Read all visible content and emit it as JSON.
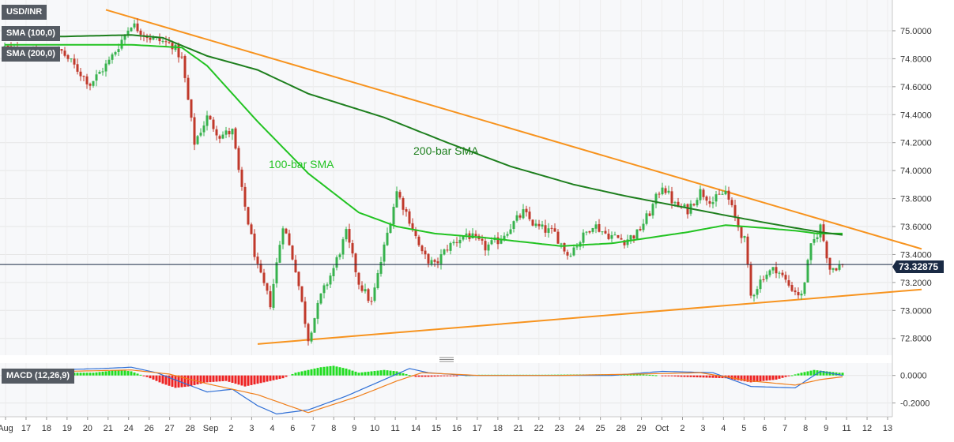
{
  "header": {
    "symbol": "USD/INR",
    "current_price": "73.32875"
  },
  "legend": {
    "sma100": "SMA (100,0)",
    "sma200": "SMA (200,0)",
    "macd": "MACD (12,26,9)"
  },
  "annotations": {
    "sma100_label": "100-bar SMA",
    "sma200_label": "200-bar SMA"
  },
  "colors": {
    "up": "#37b24d",
    "down": "#c0392b",
    "sma100": "#22c322",
    "sma200": "#1e7f1e",
    "trendline": "#f7931e",
    "macd_line": "#2f6fd6",
    "signal_line": "#f07f1b",
    "hist_pos": "#22dd22",
    "hist_neg": "#ee2222",
    "grid": "#e6e6e6",
    "price_tag": "#1a2a44"
  },
  "chart_data": [
    {
      "type": "candlestick",
      "title": "USD/INR",
      "ylim": [
        72.68,
        75.22
      ],
      "yticks": [
        "75.0000",
        "74.8000",
        "74.6000",
        "74.4000",
        "74.2000",
        "74.0000",
        "73.8000",
        "73.6000",
        "73.4000",
        "73.2000",
        "73.0000",
        "72.8000"
      ],
      "x_ticks": [
        "Aug",
        "17",
        "18",
        "19",
        "20",
        "21",
        "24",
        "26",
        "27",
        "28",
        "Sep",
        "2",
        "3",
        "4",
        "6",
        "7",
        "8",
        "9",
        "10",
        "11",
        "14",
        "15",
        "16",
        "17",
        "18",
        "21",
        "22",
        "23",
        "24",
        "25",
        "28",
        "29",
        "Oct",
        "2",
        "3",
        "4",
        "5",
        "6",
        "7",
        "8",
        "9",
        "11",
        "12",
        "13"
      ],
      "last_price": 73.32875,
      "anchors": [
        [
          0,
          74.88
        ],
        [
          10,
          74.82
        ],
        [
          18,
          74.85
        ],
        [
          27,
          74.62
        ],
        [
          33,
          74.78
        ],
        [
          40,
          75.05
        ],
        [
          46,
          74.95
        ],
        [
          53,
          74.9
        ],
        [
          56,
          74.8
        ],
        [
          60,
          74.2
        ],
        [
          64,
          74.38
        ],
        [
          68,
          74.25
        ],
        [
          72,
          74.28
        ],
        [
          75,
          73.85
        ],
        [
          80,
          73.3
        ],
        [
          84,
          73.05
        ],
        [
          88,
          73.62
        ],
        [
          92,
          73.3
        ],
        [
          96,
          72.8
        ],
        [
          100,
          73.1
        ],
        [
          104,
          73.3
        ],
        [
          108,
          73.55
        ],
        [
          112,
          73.2
        ],
        [
          116,
          73.05
        ],
        [
          120,
          73.45
        ],
        [
          124,
          73.85
        ],
        [
          128,
          73.65
        ],
        [
          132,
          73.4
        ],
        [
          136,
          73.32
        ],
        [
          140,
          73.45
        ],
        [
          146,
          73.55
        ],
        [
          152,
          73.45
        ],
        [
          156,
          73.5
        ],
        [
          160,
          73.6
        ],
        [
          164,
          73.7
        ],
        [
          168,
          73.6
        ],
        [
          174,
          73.55
        ],
        [
          178,
          73.4
        ],
        [
          182,
          73.5
        ],
        [
          186,
          73.62
        ],
        [
          190,
          73.55
        ],
        [
          196,
          73.5
        ],
        [
          200,
          73.55
        ],
        [
          204,
          73.7
        ],
        [
          208,
          73.9
        ],
        [
          212,
          73.75
        ],
        [
          216,
          73.72
        ],
        [
          220,
          73.85
        ],
        [
          224,
          73.78
        ],
        [
          228,
          73.85
        ],
        [
          232,
          73.6
        ],
        [
          234,
          73.5
        ],
        [
          236,
          73.1
        ],
        [
          240,
          73.25
        ],
        [
          244,
          73.3
        ],
        [
          248,
          73.18
        ],
        [
          252,
          73.1
        ],
        [
          255,
          73.45
        ],
        [
          258,
          73.6
        ],
        [
          261,
          73.3
        ],
        [
          265,
          73.33
        ]
      ],
      "sma100": [
        [
          0,
          74.9
        ],
        [
          40,
          74.9
        ],
        [
          56,
          74.88
        ],
        [
          64,
          74.75
        ],
        [
          80,
          74.35
        ],
        [
          96,
          73.98
        ],
        [
          112,
          73.7
        ],
        [
          124,
          73.6
        ],
        [
          136,
          73.55
        ],
        [
          152,
          73.52
        ],
        [
          164,
          73.49
        ],
        [
          176,
          73.46
        ],
        [
          192,
          73.48
        ],
        [
          204,
          73.52
        ],
        [
          216,
          73.56
        ],
        [
          228,
          73.61
        ],
        [
          240,
          73.59
        ],
        [
          250,
          73.57
        ],
        [
          257,
          73.55
        ],
        [
          262,
          73.55
        ],
        [
          265,
          73.55
        ]
      ],
      "sma200": [
        [
          0,
          74.95
        ],
        [
          40,
          74.97
        ],
        [
          50,
          74.95
        ],
        [
          64,
          74.82
        ],
        [
          80,
          74.72
        ],
        [
          96,
          74.55
        ],
        [
          120,
          74.38
        ],
        [
          140,
          74.2
        ],
        [
          160,
          74.03
        ],
        [
          180,
          73.9
        ],
        [
          196,
          73.82
        ],
        [
          212,
          73.75
        ],
        [
          228,
          73.68
        ],
        [
          240,
          73.63
        ],
        [
          250,
          73.59
        ],
        [
          258,
          73.56
        ],
        [
          265,
          73.54
        ]
      ],
      "trendlines": [
        {
          "name": "resistance",
          "points": [
            [
              32,
              75.15
            ],
            [
              290,
              73.44
            ]
          ]
        },
        {
          "name": "support",
          "points": [
            [
              80,
              72.76
            ],
            [
              290,
              73.15
            ]
          ]
        }
      ]
    },
    {
      "type": "macd",
      "title": "MACD (12,26,9)",
      "ylim": [
        -0.3,
        0.09
      ],
      "yticks": [
        "0.0000",
        "-0.2000"
      ],
      "macd_line": [
        [
          0,
          0.03
        ],
        [
          30,
          0.05
        ],
        [
          40,
          0.06
        ],
        [
          48,
          0.02
        ],
        [
          56,
          -0.05
        ],
        [
          64,
          -0.12
        ],
        [
          72,
          -0.1
        ],
        [
          80,
          -0.22
        ],
        [
          86,
          -0.28
        ],
        [
          96,
          -0.25
        ],
        [
          108,
          -0.15
        ],
        [
          118,
          -0.05
        ],
        [
          128,
          0.05
        ],
        [
          134,
          0.02
        ],
        [
          146,
          0.0
        ],
        [
          160,
          0.0
        ],
        [
          176,
          0.0
        ],
        [
          192,
          0.0
        ],
        [
          208,
          0.03
        ],
        [
          224,
          0.02
        ],
        [
          236,
          -0.08
        ],
        [
          250,
          -0.09
        ],
        [
          258,
          0.03
        ],
        [
          265,
          0.0
        ]
      ],
      "signal_line": [
        [
          0,
          0.02
        ],
        [
          40,
          0.04
        ],
        [
          52,
          0.01
        ],
        [
          64,
          -0.06
        ],
        [
          80,
          -0.14
        ],
        [
          96,
          -0.27
        ],
        [
          112,
          -0.15
        ],
        [
          124,
          -0.04
        ],
        [
          132,
          0.02
        ],
        [
          150,
          0.0
        ],
        [
          176,
          0.0
        ],
        [
          200,
          0.01
        ],
        [
          220,
          0.02
        ],
        [
          236,
          -0.04
        ],
        [
          250,
          -0.07
        ],
        [
          258,
          -0.03
        ],
        [
          265,
          -0.01
        ]
      ],
      "histogram": [
        [
          28,
          0.02
        ],
        [
          32,
          0.03
        ],
        [
          36,
          0.04
        ],
        [
          40,
          0.03
        ],
        [
          46,
          -0.02
        ],
        [
          50,
          -0.06
        ],
        [
          54,
          -0.09
        ],
        [
          58,
          -0.08
        ],
        [
          64,
          -0.05
        ],
        [
          70,
          -0.04
        ],
        [
          76,
          -0.08
        ],
        [
          80,
          -0.06
        ],
        [
          88,
          -0.02
        ],
        [
          92,
          0.02
        ],
        [
          96,
          0.04
        ],
        [
          100,
          0.06
        ],
        [
          104,
          0.07
        ],
        [
          108,
          0.05
        ],
        [
          112,
          0.02
        ],
        [
          116,
          0.03
        ],
        [
          120,
          0.04
        ],
        [
          124,
          0.03
        ],
        [
          130,
          -0.01
        ],
        [
          134,
          -0.01
        ],
        [
          150,
          0.005
        ],
        [
          170,
          0.005
        ],
        [
          200,
          0.01
        ],
        [
          214,
          -0.01
        ],
        [
          228,
          -0.02
        ],
        [
          236,
          -0.05
        ],
        [
          244,
          -0.03
        ],
        [
          252,
          0.02
        ],
        [
          256,
          0.04
        ],
        [
          260,
          0.03
        ],
        [
          264,
          0.02
        ]
      ]
    }
  ]
}
